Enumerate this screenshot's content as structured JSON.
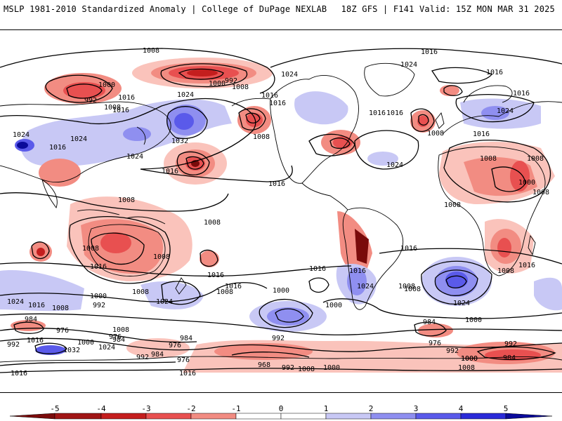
{
  "header": {
    "title_left": "MSLP 1981-2010 Standardized Anomaly | College of DuPage NEXLAB",
    "title_right": "18Z GFS | F141 Valid: 15Z MON MAR 31 2025"
  },
  "colors": {
    "background": "#ffffff",
    "land": "#ffffff",
    "coast": "#000000",
    "contour": "#000000",
    "neg5": "#7a0b0b",
    "neg4": "#c41e1e",
    "neg3": "#e85050",
    "neg2": "#f28c82",
    "neg1": "#fac3bb",
    "pos1": "#c8c8f5",
    "pos2": "#8f8ff0",
    "pos3": "#5a5aea",
    "pos4": "#2a2ad8",
    "pos5": "#0a0a9a"
  },
  "contour_labels": [
    "1008",
    "1016",
    "1024",
    "1032",
    "1000",
    "992",
    "984",
    "976",
    "968"
  ],
  "map": {
    "labels": [
      "1008",
      "1016",
      "1024",
      "992",
      "1000",
      "1008",
      "1016",
      "1024",
      "1016",
      "1024",
      "1016",
      "1032",
      "1024",
      "1016",
      "1008",
      "1008",
      "1000",
      "992",
      "1016",
      "1008",
      "1024",
      "1016",
      "1016",
      "1016",
      "1024",
      "1024",
      "1016",
      "1016",
      "1024",
      "1016",
      "1008",
      "1008",
      "1016",
      "1000",
      "1008",
      "1008",
      "1008",
      "1008",
      "1016",
      "1008",
      "1008",
      "1016",
      "1016",
      "1008",
      "1016",
      "1008",
      "1016",
      "1000",
      "1024",
      "1016",
      "1000",
      "992",
      "1024",
      "1016",
      "1008",
      "1024",
      "1016",
      "1008",
      "1000",
      "992",
      "984",
      "976",
      "1016",
      "1000",
      "1024",
      "992",
      "1032",
      "976",
      "984",
      "1008",
      "984",
      "976",
      "992",
      "984",
      "976",
      "968",
      "1008",
      "1000",
      "992",
      "1000",
      "1008",
      "1016",
      "1016",
      "1008",
      "984",
      "992",
      "1008",
      "1024",
      "1000",
      "976",
      "992",
      "1000",
      "984"
    ]
  },
  "colorbar": {
    "ticks": [
      "-5",
      "-4",
      "-3",
      "-2",
      "-1",
      "0",
      "1",
      "2",
      "3",
      "4",
      "5"
    ]
  }
}
